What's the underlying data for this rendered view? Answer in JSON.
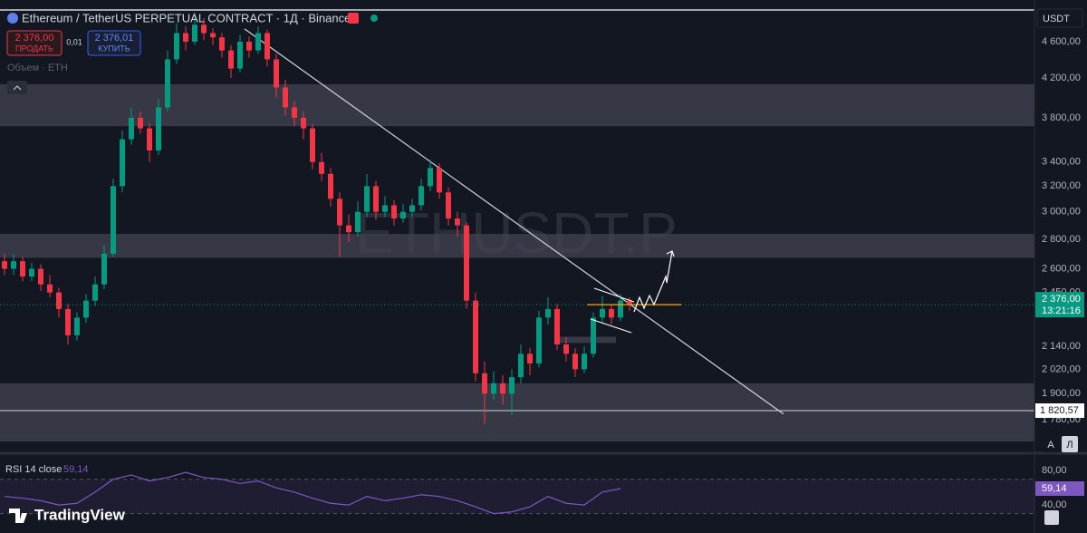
{
  "chart_data": {
    "type": "candlestick",
    "title": "Ethereum / TetherUS PERPETUAL CONTRACT · 1Д · Binance",
    "sell_price": "2 376,00",
    "sell_label": "ПРОДАТЬ",
    "spread": "0,01",
    "buy_price": "2 376,01",
    "buy_label": "КУПИТЬ",
    "volume_legend": "Объем · ETH",
    "watermark": "ETHUSDT.P",
    "currency": "USDT",
    "countdown": "13:21:16",
    "scale_buttons": [
      "А",
      "Л"
    ],
    "log_scale": true,
    "up_color": "#089981",
    "down_color": "#f23645",
    "ylim": [
      1685,
      4970
    ],
    "yticks": [
      {
        "value": 4600,
        "label": "4 600,00"
      },
      {
        "value": 4200,
        "label": "4 200,00"
      },
      {
        "value": 3800,
        "label": "3 800,00"
      },
      {
        "value": 3400,
        "label": "3 400,00"
      },
      {
        "value": 3200,
        "label": "3 200,00"
      },
      {
        "value": 3000,
        "label": "3 000,00"
      },
      {
        "value": 2800,
        "label": "2 800,00"
      },
      {
        "value": 2600,
        "label": "2 600,00"
      },
      {
        "value": 2450,
        "label": "2 450,00"
      },
      {
        "value": 2140,
        "label": "2 140,00"
      },
      {
        "value": 2020,
        "label": "2 020,00"
      },
      {
        "value": 1900,
        "label": "1 900,00"
      },
      {
        "value": 1780,
        "label": "1 780,00"
      }
    ],
    "last_price": {
      "value": 2376,
      "label": "2 376,00"
    },
    "hline": {
      "value": 1820.57,
      "label": "1 820,57"
    },
    "zones": [
      [
        3720,
        4134
      ],
      [
        2673,
        2838
      ],
      [
        1685,
        1950
      ],
      [
        2158,
        2192
      ]
    ],
    "trendline": {
      "x": [
        26.5,
        86
      ],
      "y": [
        4750,
        1805
      ]
    },
    "candles": [
      [
        2650,
        2700,
        2560,
        2600
      ],
      [
        2600,
        2700,
        2560,
        2650
      ],
      [
        2650,
        2680,
        2520,
        2550
      ],
      [
        2550,
        2640,
        2520,
        2600
      ],
      [
        2600,
        2630,
        2460,
        2500
      ],
      [
        2500,
        2560,
        2420,
        2450
      ],
      [
        2450,
        2480,
        2300,
        2350
      ],
      [
        2350,
        2380,
        2150,
        2200
      ],
      [
        2200,
        2330,
        2170,
        2300
      ],
      [
        2300,
        2440,
        2270,
        2400
      ],
      [
        2400,
        2550,
        2370,
        2500
      ],
      [
        2500,
        2760,
        2470,
        2700
      ],
      [
        2700,
        3260,
        2680,
        3200
      ],
      [
        3200,
        3680,
        3150,
        3600
      ],
      [
        3600,
        3900,
        3550,
        3800
      ],
      [
        3800,
        3860,
        3650,
        3700
      ],
      [
        3700,
        3750,
        3400,
        3500
      ],
      [
        3500,
        3980,
        3460,
        3900
      ],
      [
        3900,
        4500,
        3860,
        4400
      ],
      [
        4400,
        4820,
        4350,
        4700
      ],
      [
        4700,
        4780,
        4500,
        4600
      ],
      [
        4600,
        4950,
        4560,
        4800
      ],
      [
        4800,
        4880,
        4620,
        4700
      ],
      [
        4700,
        4760,
        4560,
        4650
      ],
      [
        4650,
        4700,
        4420,
        4500
      ],
      [
        4500,
        4560,
        4200,
        4300
      ],
      [
        4300,
        4680,
        4260,
        4600
      ],
      [
        4600,
        4660,
        4420,
        4500
      ],
      [
        4500,
        4780,
        4460,
        4700
      ],
      [
        4700,
        4740,
        4320,
        4400
      ],
      [
        4400,
        4460,
        4000,
        4100
      ],
      [
        4100,
        4180,
        3820,
        3900
      ],
      [
        3900,
        3960,
        3720,
        3800
      ],
      [
        3800,
        3860,
        3600,
        3700
      ],
      [
        3700,
        3740,
        3340,
        3400
      ],
      [
        3400,
        3480,
        3240,
        3300
      ],
      [
        3300,
        3350,
        3040,
        3100
      ],
      [
        3100,
        3150,
        2680,
        2900
      ],
      [
        2900,
        2980,
        2780,
        2850
      ],
      [
        2850,
        3080,
        2820,
        3000
      ],
      [
        3000,
        3300,
        2960,
        3200
      ],
      [
        3200,
        3240,
        2940,
        3000
      ],
      [
        3000,
        3120,
        2960,
        3050
      ],
      [
        3050,
        3090,
        2900,
        2950
      ],
      [
        2950,
        3060,
        2920,
        3000
      ],
      [
        3000,
        3100,
        2960,
        3050
      ],
      [
        3050,
        3260,
        3010,
        3200
      ],
      [
        3200,
        3420,
        3160,
        3350
      ],
      [
        3350,
        3390,
        3100,
        3150
      ],
      [
        3150,
        3190,
        2900,
        2950
      ],
      [
        2950,
        3000,
        2820,
        2900
      ],
      [
        2900,
        2920,
        2350,
        2400
      ],
      [
        2400,
        2450,
        1960,
        2000
      ],
      [
        2000,
        2060,
        1760,
        1900
      ],
      [
        1900,
        2010,
        1870,
        1950
      ],
      [
        1950,
        1990,
        1850,
        1900
      ],
      [
        1900,
        2020,
        1800,
        1980
      ],
      [
        1980,
        2150,
        1950,
        2100
      ],
      [
        2100,
        2130,
        1990,
        2050
      ],
      [
        2050,
        2340,
        2030,
        2300
      ],
      [
        2300,
        2420,
        2260,
        2350
      ],
      [
        2350,
        2380,
        2120,
        2150
      ],
      [
        2150,
        2190,
        2060,
        2100
      ],
      [
        2100,
        2130,
        1980,
        2020
      ],
      [
        2020,
        2140,
        2000,
        2100
      ],
      [
        2100,
        2330,
        2080,
        2300
      ],
      [
        2300,
        2430,
        2270,
        2350
      ],
      [
        2350,
        2380,
        2260,
        2300
      ],
      [
        2300,
        2440,
        2280,
        2400
      ],
      [
        2400,
        2420,
        2340,
        2376
      ]
    ],
    "rsi": {
      "name": "RSI 14 close",
      "color": "#7e57c2",
      "ylim": [
        18,
        95
      ],
      "yticks": [
        {
          "value": 80,
          "label": "80,00"
        },
        {
          "value": 40,
          "label": "40,00"
        }
      ],
      "band": [
        30,
        70
      ],
      "last": {
        "value": 59.14,
        "label": "59,14"
      },
      "values": [
        50,
        48,
        45,
        40,
        42,
        55,
        70,
        75,
        68,
        72,
        78,
        72,
        70,
        65,
        68,
        60,
        55,
        48,
        42,
        40,
        50,
        45,
        48,
        52,
        50,
        45,
        38,
        30,
        32,
        38,
        50,
        42,
        40,
        55,
        59.14
      ]
    },
    "logo": "TradingView"
  }
}
